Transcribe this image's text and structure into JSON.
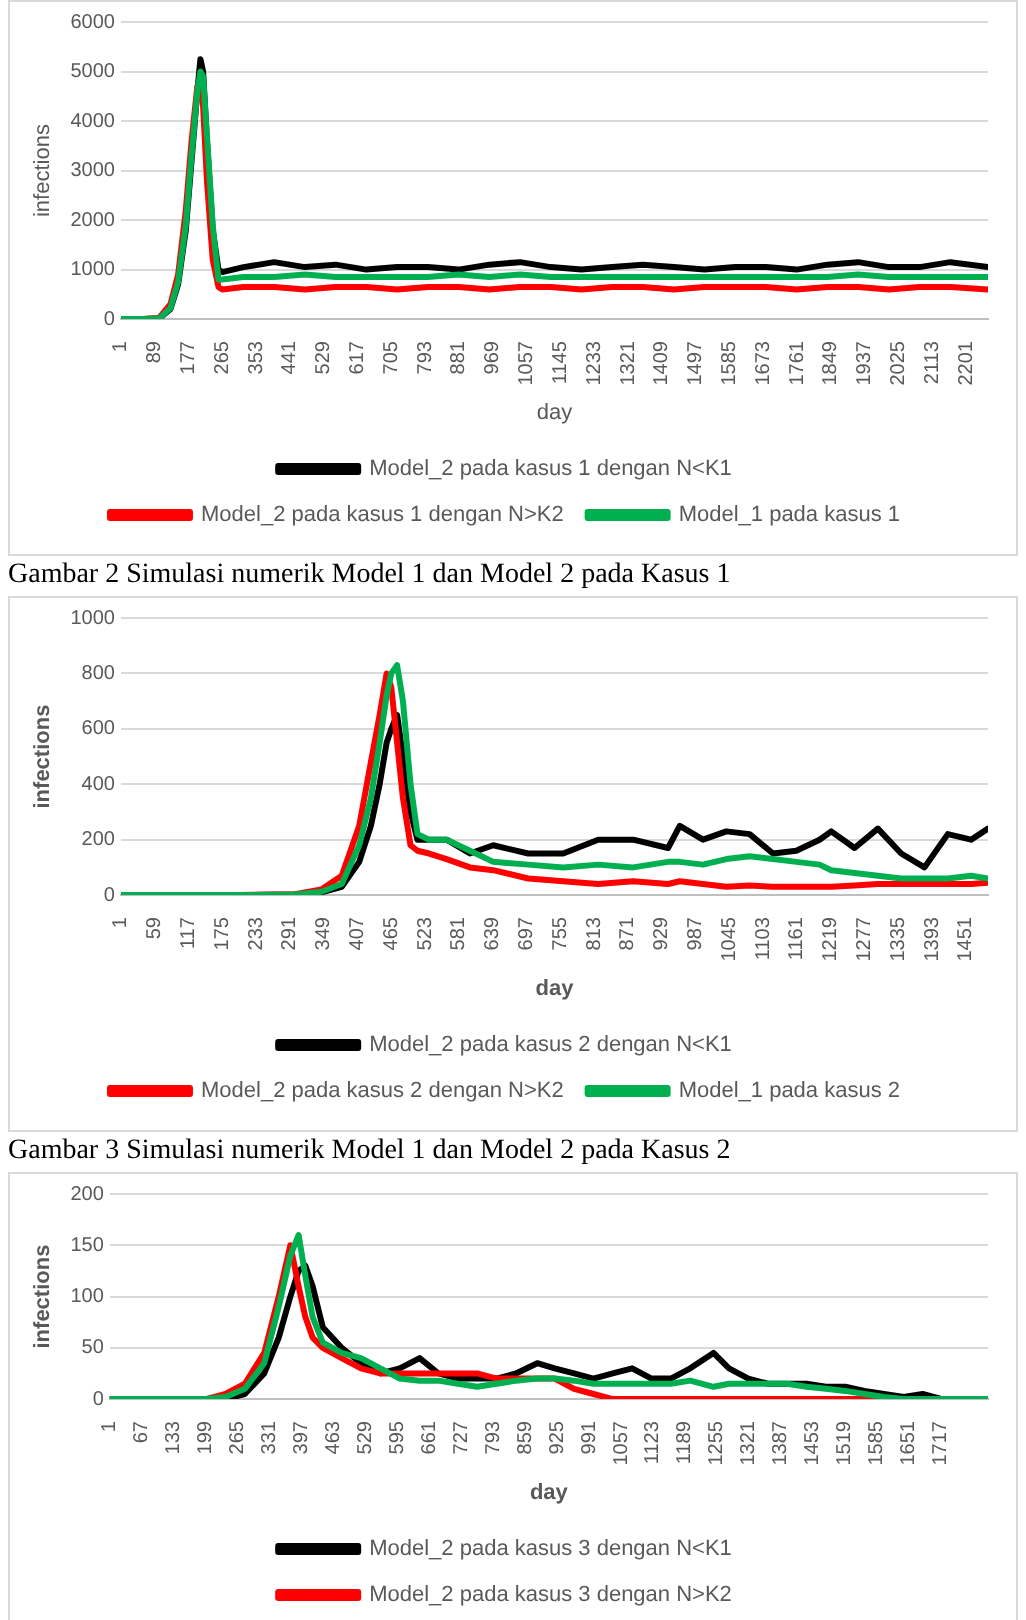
{
  "chart_data": [
    {
      "type": "line",
      "xlabel": "day",
      "ylabel": "infections",
      "xlim": [
        1,
        2258
      ],
      "ylim": [
        0,
        6000
      ],
      "xticks": [
        1,
        89,
        177,
        265,
        353,
        441,
        529,
        617,
        705,
        793,
        881,
        969,
        1057,
        1145,
        1233,
        1321,
        1409,
        1497,
        1585,
        1673,
        1761,
        1849,
        1937,
        2025,
        2113,
        2201
      ],
      "yticks": [
        0,
        1000,
        2000,
        3000,
        4000,
        5000,
        6000
      ],
      "grid": "y",
      "legend": "bottom",
      "marker": "none",
      "x": [
        1,
        60,
        100,
        130,
        150,
        170,
        185,
        200,
        208,
        215,
        225,
        240,
        255,
        265,
        320,
        400,
        480,
        560,
        640,
        720,
        800,
        880,
        960,
        1040,
        1120,
        1200,
        1280,
        1360,
        1440,
        1520,
        1600,
        1680,
        1760,
        1840,
        1920,
        2000,
        2080,
        2160,
        2258
      ],
      "series": [
        {
          "name": "Model_2 pada kasus 1 dengan N<K1",
          "color": "#000000",
          "values": [
            0,
            0,
            10,
            200,
            700,
            1800,
            3200,
            4600,
            5250,
            5000,
            3600,
            1800,
            1000,
            950,
            1050,
            1150,
            1050,
            1100,
            1000,
            1050,
            1050,
            1000,
            1100,
            1150,
            1050,
            1000,
            1050,
            1100,
            1050,
            1000,
            1050,
            1050,
            1000,
            1100,
            1150,
            1050,
            1050,
            1150,
            1050
          ]
        },
        {
          "name": "Model_2 pada kasus 1 dengan N>K2",
          "color": "#ff0000",
          "values": [
            0,
            0,
            20,
            300,
            900,
            2200,
            3600,
            4700,
            4800,
            4300,
            2800,
            1200,
            650,
            600,
            650,
            650,
            600,
            650,
            650,
            600,
            650,
            650,
            600,
            650,
            650,
            600,
            650,
            650,
            600,
            650,
            650,
            650,
            600,
            650,
            650,
            600,
            650,
            650,
            600
          ]
        },
        {
          "name": "Model_1 pada kasus 1",
          "color": "#00b050",
          "values": [
            0,
            0,
            10,
            220,
            750,
            1900,
            3300,
            4600,
            5000,
            4900,
            3700,
            1900,
            800,
            800,
            850,
            850,
            900,
            850,
            850,
            850,
            850,
            900,
            850,
            900,
            850,
            850,
            850,
            850,
            850,
            850,
            850,
            850,
            850,
            850,
            900,
            850,
            850,
            850,
            850
          ]
        }
      ],
      "annotations": [
        "Gambar 2 Simulasi numerik Model 1 dan Model 2 pada Kasus 1"
      ]
    },
    {
      "type": "line",
      "xlabel": "day",
      "ylabel": "infections",
      "xlim": [
        1,
        1489
      ],
      "ylim": [
        0,
        1000
      ],
      "xticks": [
        1,
        59,
        117,
        175,
        233,
        291,
        349,
        407,
        465,
        523,
        581,
        639,
        697,
        755,
        813,
        871,
        929,
        987,
        1045,
        1103,
        1161,
        1219,
        1277,
        1335,
        1393,
        1451
      ],
      "yticks": [
        0,
        200,
        400,
        600,
        800,
        1000
      ],
      "grid": "y",
      "legend": "bottom",
      "marker": "none",
      "x": [
        1,
        100,
        200,
        300,
        345,
        380,
        410,
        430,
        445,
        457,
        465,
        475,
        485,
        498,
        510,
        530,
        560,
        600,
        640,
        700,
        760,
        820,
        880,
        940,
        960,
        1000,
        1040,
        1080,
        1120,
        1160,
        1200,
        1220,
        1260,
        1300,
        1340,
        1380,
        1420,
        1460,
        1489
      ],
      "series": [
        {
          "name": "Model_2 pada kasus 2 dengan N<K1",
          "color": "#000000",
          "values": [
            0,
            0,
            0,
            2,
            10,
            30,
            120,
            250,
            400,
            550,
            600,
            650,
            500,
            300,
            200,
            200,
            200,
            150,
            180,
            150,
            150,
            200,
            200,
            170,
            250,
            200,
            230,
            220,
            150,
            160,
            200,
            230,
            170,
            240,
            150,
            100,
            220,
            200,
            240
          ]
        },
        {
          "name": "Model_2 pada kasus 2 dengan N>K2",
          "color": "#ff0000",
          "values": [
            null,
            null,
            0,
            3,
            20,
            70,
            250,
            480,
            650,
            800,
            750,
            550,
            350,
            180,
            160,
            150,
            130,
            100,
            90,
            60,
            50,
            40,
            50,
            40,
            50,
            40,
            30,
            35,
            30,
            30,
            30,
            30,
            35,
            40,
            40,
            40,
            40,
            40,
            45
          ]
        },
        {
          "name": "Model_1 pada kasus 2",
          "color": "#00b050",
          "values": [
            0,
            0,
            0,
            2,
            12,
            40,
            180,
            350,
            550,
            720,
            800,
            830,
            700,
            400,
            220,
            200,
            200,
            160,
            120,
            110,
            100,
            110,
            100,
            120,
            120,
            110,
            130,
            140,
            130,
            120,
            110,
            90,
            80,
            70,
            60,
            60,
            60,
            70,
            60
          ]
        }
      ],
      "annotations": [
        "Gambar 3 Simulasi numerik Model 1 dan Model 2 pada Kasus 2"
      ]
    },
    {
      "type": "line",
      "xlabel": "day",
      "ylabel": "infections",
      "xlim": [
        1,
        1815
      ],
      "ylim": [
        0,
        200
      ],
      "xticks": [
        1,
        67,
        133,
        199,
        265,
        331,
        397,
        463,
        529,
        595,
        661,
        727,
        793,
        859,
        925,
        991,
        1057,
        1123,
        1189,
        1255,
        1321,
        1387,
        1453,
        1519,
        1585,
        1651,
        1717
      ],
      "yticks": [
        0,
        50,
        100,
        150,
        200
      ],
      "grid": "y",
      "legend": "bottom",
      "marker": "none",
      "x": [
        1,
        100,
        200,
        240,
        280,
        320,
        350,
        374,
        391,
        405,
        420,
        441,
        480,
        520,
        560,
        600,
        641,
        680,
        720,
        760,
        800,
        840,
        884,
        920,
        960,
        1000,
        1040,
        1080,
        1120,
        1160,
        1200,
        1248,
        1280,
        1320,
        1360,
        1400,
        1440,
        1480,
        1520,
        1560,
        1600,
        1641,
        1680,
        1720,
        1815
      ],
      "series": [
        {
          "name": "Model_2 pada kasus 3 dengan N<K1",
          "color": "#000000",
          "values": [
            0,
            0,
            0,
            0,
            5,
            25,
            60,
            100,
            125,
            130,
            110,
            70,
            50,
            35,
            25,
            30,
            40,
            25,
            20,
            20,
            20,
            25,
            35,
            30,
            25,
            20,
            25,
            30,
            20,
            20,
            30,
            45,
            30,
            20,
            15,
            15,
            15,
            12,
            12,
            8,
            5,
            2,
            5,
            0,
            0
          ]
        },
        {
          "name": "Model_2 pada kasus 3 dengan N>K2",
          "color": "#ff0000",
          "values": [
            0,
            0,
            0,
            5,
            15,
            45,
            100,
            150,
            110,
            80,
            60,
            50,
            40,
            30,
            25,
            25,
            25,
            25,
            25,
            25,
            20,
            20,
            20,
            20,
            10,
            5,
            0,
            0,
            0,
            0,
            0,
            0,
            0,
            0,
            0,
            0,
            0,
            0,
            0,
            0,
            0,
            0,
            null,
            null,
            null
          ]
        },
        {
          "color": "#00b050",
          "values": [
            0,
            0,
            0,
            2,
            10,
            35,
            90,
            140,
            160,
            120,
            80,
            55,
            45,
            40,
            30,
            20,
            18,
            18,
            15,
            12,
            15,
            18,
            20,
            20,
            18,
            15,
            15,
            15,
            15,
            15,
            18,
            12,
            15,
            15,
            15,
            15,
            12,
            10,
            8,
            5,
            2,
            0,
            0,
            0,
            0
          ]
        }
      ]
    }
  ]
}
